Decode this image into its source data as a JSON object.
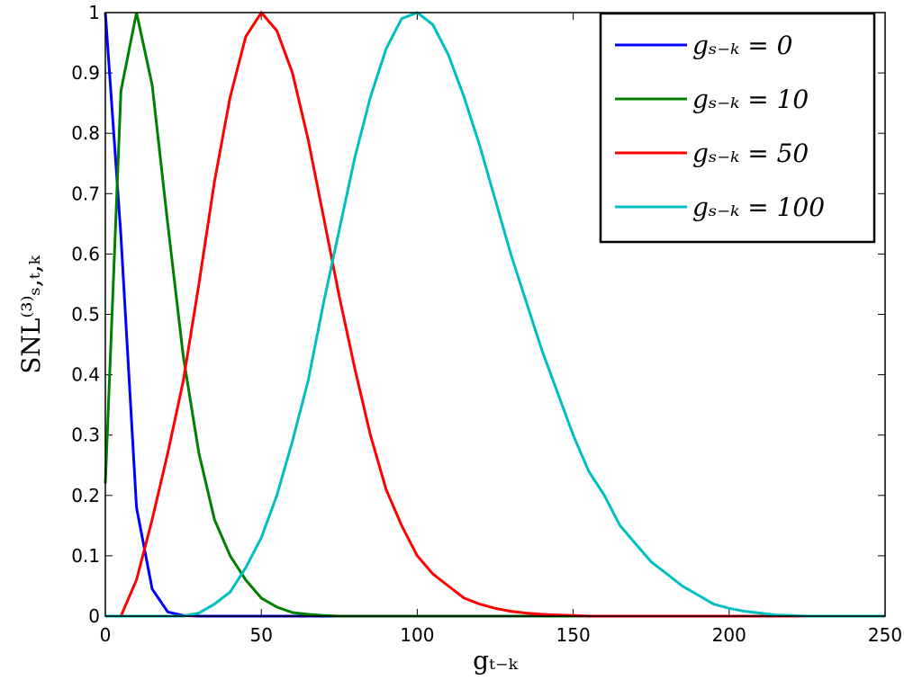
{
  "chart_data": {
    "type": "line",
    "xlabel": "gₜ₋ₖ",
    "ylabel": "SNL⁽³⁾ₛ,ₜ,ₖ",
    "x": [
      0,
      5,
      10,
      15,
      20,
      25,
      30,
      35,
      40,
      45,
      50,
      55,
      60,
      65,
      70,
      75,
      80,
      85,
      90,
      95,
      100,
      105,
      110,
      115,
      120,
      125,
      130,
      135,
      140,
      145,
      150,
      155,
      160,
      165,
      170,
      175,
      180,
      185,
      190,
      195,
      200,
      205,
      210,
      215,
      220,
      225,
      230,
      235,
      240,
      245,
      250
    ],
    "series": [
      {
        "name": "gₛ₋ₖ = 0",
        "color": "#0000ff",
        "values": [
          1,
          0.63,
          0.18,
          0.045,
          0.007,
          0.001,
          0,
          0,
          0,
          0,
          0,
          0,
          0,
          0,
          0,
          0,
          0,
          0,
          0,
          0,
          0,
          0,
          0,
          0,
          0,
          0,
          0,
          0,
          0,
          0,
          0,
          0,
          0,
          0,
          0,
          0,
          0,
          0,
          0,
          0,
          0,
          0,
          0,
          0,
          0,
          0,
          0,
          0,
          0,
          0,
          0
        ]
      },
      {
        "name": "gₛ₋ₖ = 10",
        "color": "#008000",
        "values": [
          0.22,
          0.87,
          1,
          0.88,
          0.65,
          0.43,
          0.27,
          0.16,
          0.1,
          0.06,
          0.03,
          0.015,
          0.006,
          0.003,
          0.001,
          0,
          0,
          0,
          0,
          0,
          0,
          0,
          0,
          0,
          0,
          0,
          0,
          0,
          0,
          0,
          0,
          0,
          0,
          0,
          0,
          0,
          0,
          0,
          0,
          0,
          0,
          0,
          0,
          0,
          0,
          0,
          0,
          0,
          0,
          0,
          0
        ]
      },
      {
        "name": "gₛ₋ₖ = 50",
        "color": "#ff0000",
        "values": [
          0,
          0,
          0.06,
          0.16,
          0.27,
          0.39,
          0.55,
          0.72,
          0.86,
          0.96,
          1,
          0.97,
          0.9,
          0.79,
          0.66,
          0.53,
          0.41,
          0.3,
          0.21,
          0.15,
          0.1,
          0.07,
          0.05,
          0.03,
          0.02,
          0.013,
          0.008,
          0.005,
          0.003,
          0.002,
          0.001,
          0,
          0,
          0,
          0,
          0,
          0,
          0,
          0,
          0,
          0,
          0,
          0,
          0,
          0,
          0,
          0,
          0,
          0,
          0,
          0
        ]
      },
      {
        "name": "gₛ₋ₖ = 100",
        "color": "#00bfbf",
        "values": [
          0,
          0,
          0,
          0,
          0,
          0,
          0.005,
          0.02,
          0.04,
          0.08,
          0.13,
          0.2,
          0.29,
          0.39,
          0.52,
          0.64,
          0.76,
          0.86,
          0.94,
          0.99,
          1,
          0.98,
          0.93,
          0.86,
          0.78,
          0.69,
          0.6,
          0.52,
          0.44,
          0.37,
          0.3,
          0.24,
          0.2,
          0.15,
          0.12,
          0.09,
          0.07,
          0.05,
          0.035,
          0.02,
          0.013,
          0.008,
          0.005,
          0.002,
          0.001,
          0,
          0,
          0,
          0,
          0,
          0
        ]
      }
    ],
    "xlim": [
      0,
      250
    ],
    "xticks": [
      0,
      50,
      100,
      150,
      200,
      250
    ],
    "ylim": [
      0,
      1
    ],
    "yticks": [
      0,
      0.1,
      0.2,
      0.3,
      0.4,
      0.5,
      0.6,
      0.7,
      0.8,
      0.9,
      1
    ],
    "grid": false,
    "legend": "upper right"
  }
}
